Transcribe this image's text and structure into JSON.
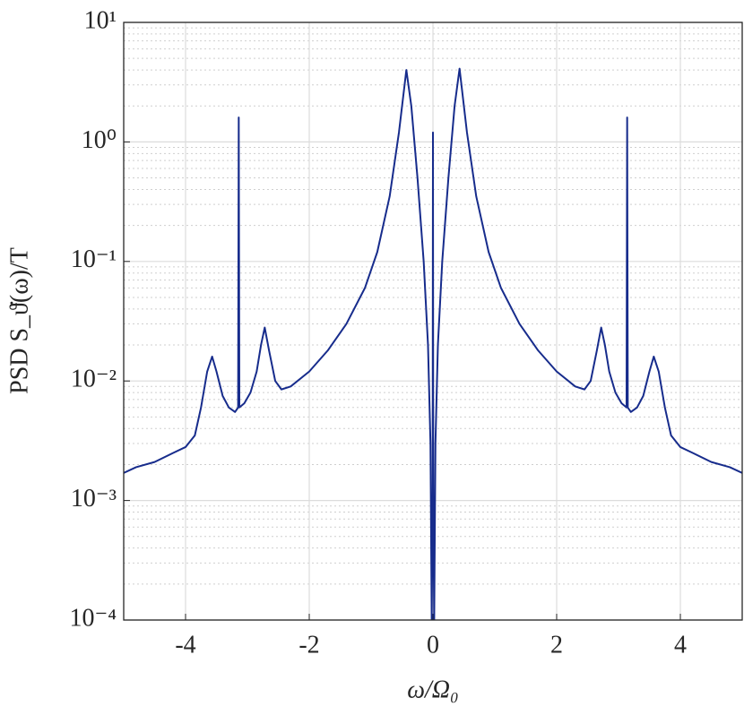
{
  "chart_data": {
    "type": "line",
    "xlabel": "ω/Ω₀",
    "ylabel": "PSD  S_ϑ̇(ω)/T",
    "color": "#172c8c",
    "log_y": true,
    "grid": true,
    "minor_grid": true,
    "xlim": [
      -5,
      5
    ],
    "xticks": [
      -4,
      -2,
      0,
      2,
      4
    ],
    "ylim": [
      0.0001,
      10
    ],
    "yticks": [
      {
        "value": 0.0001,
        "label": "10⁻⁴"
      },
      {
        "value": 0.001,
        "label": "10⁻³"
      },
      {
        "value": 0.01,
        "label": "10⁻²"
      },
      {
        "value": 0.1,
        "label": "10⁻¹"
      },
      {
        "value": 1,
        "label": "10⁰"
      },
      {
        "value": 10,
        "label": "10¹"
      }
    ],
    "x": [
      -5,
      -4.8,
      -4.5,
      -4.2,
      -4.0,
      -3.85,
      -3.75,
      -3.65,
      -3.57,
      -3.5,
      -3.4,
      -3.3,
      -3.2,
      -3.15,
      -3.14,
      -3.13,
      -3.05,
      -2.95,
      -2.85,
      -2.78,
      -2.72,
      -2.65,
      -2.55,
      -2.45,
      -2.3,
      -2.0,
      -1.7,
      -1.4,
      -1.1,
      -0.9,
      -0.7,
      -0.55,
      -0.43,
      -0.35,
      -0.25,
      -0.15,
      -0.08,
      -0.04,
      -0.02,
      -0.005,
      0,
      0.005,
      0.02,
      0.04,
      0.08,
      0.15,
      0.25,
      0.35,
      0.43,
      0.55,
      0.7,
      0.9,
      1.1,
      1.4,
      1.7,
      2.0,
      2.3,
      2.45,
      2.55,
      2.65,
      2.72,
      2.78,
      2.85,
      2.95,
      3.05,
      3.13,
      3.14,
      3.15,
      3.2,
      3.3,
      3.4,
      3.5,
      3.57,
      3.65,
      3.75,
      3.85,
      4.0,
      4.2,
      4.5,
      4.8,
      5
    ],
    "values": [
      0.0017,
      0.0019,
      0.0021,
      0.0025,
      0.0028,
      0.0035,
      0.006,
      0.012,
      0.016,
      0.012,
      0.0075,
      0.006,
      0.0055,
      0.006,
      1.6,
      0.006,
      0.0065,
      0.008,
      0.012,
      0.02,
      0.028,
      0.018,
      0.01,
      0.0085,
      0.009,
      0.012,
      0.018,
      0.03,
      0.06,
      0.12,
      0.35,
      1.2,
      4.0,
      2.0,
      0.5,
      0.1,
      0.02,
      0.003,
      0.0001,
      0.001,
      1.2,
      0.001,
      0.0001,
      0.003,
      0.02,
      0.1,
      0.5,
      2.0,
      4.1,
      1.2,
      0.35,
      0.12,
      0.06,
      0.03,
      0.018,
      0.012,
      0.009,
      0.0085,
      0.01,
      0.018,
      0.028,
      0.02,
      0.012,
      0.008,
      0.0065,
      0.006,
      1.6,
      0.006,
      0.0055,
      0.006,
      0.0075,
      0.012,
      0.016,
      0.012,
      0.006,
      0.0035,
      0.0028,
      0.0025,
      0.0021,
      0.0019,
      0.0017
    ]
  }
}
